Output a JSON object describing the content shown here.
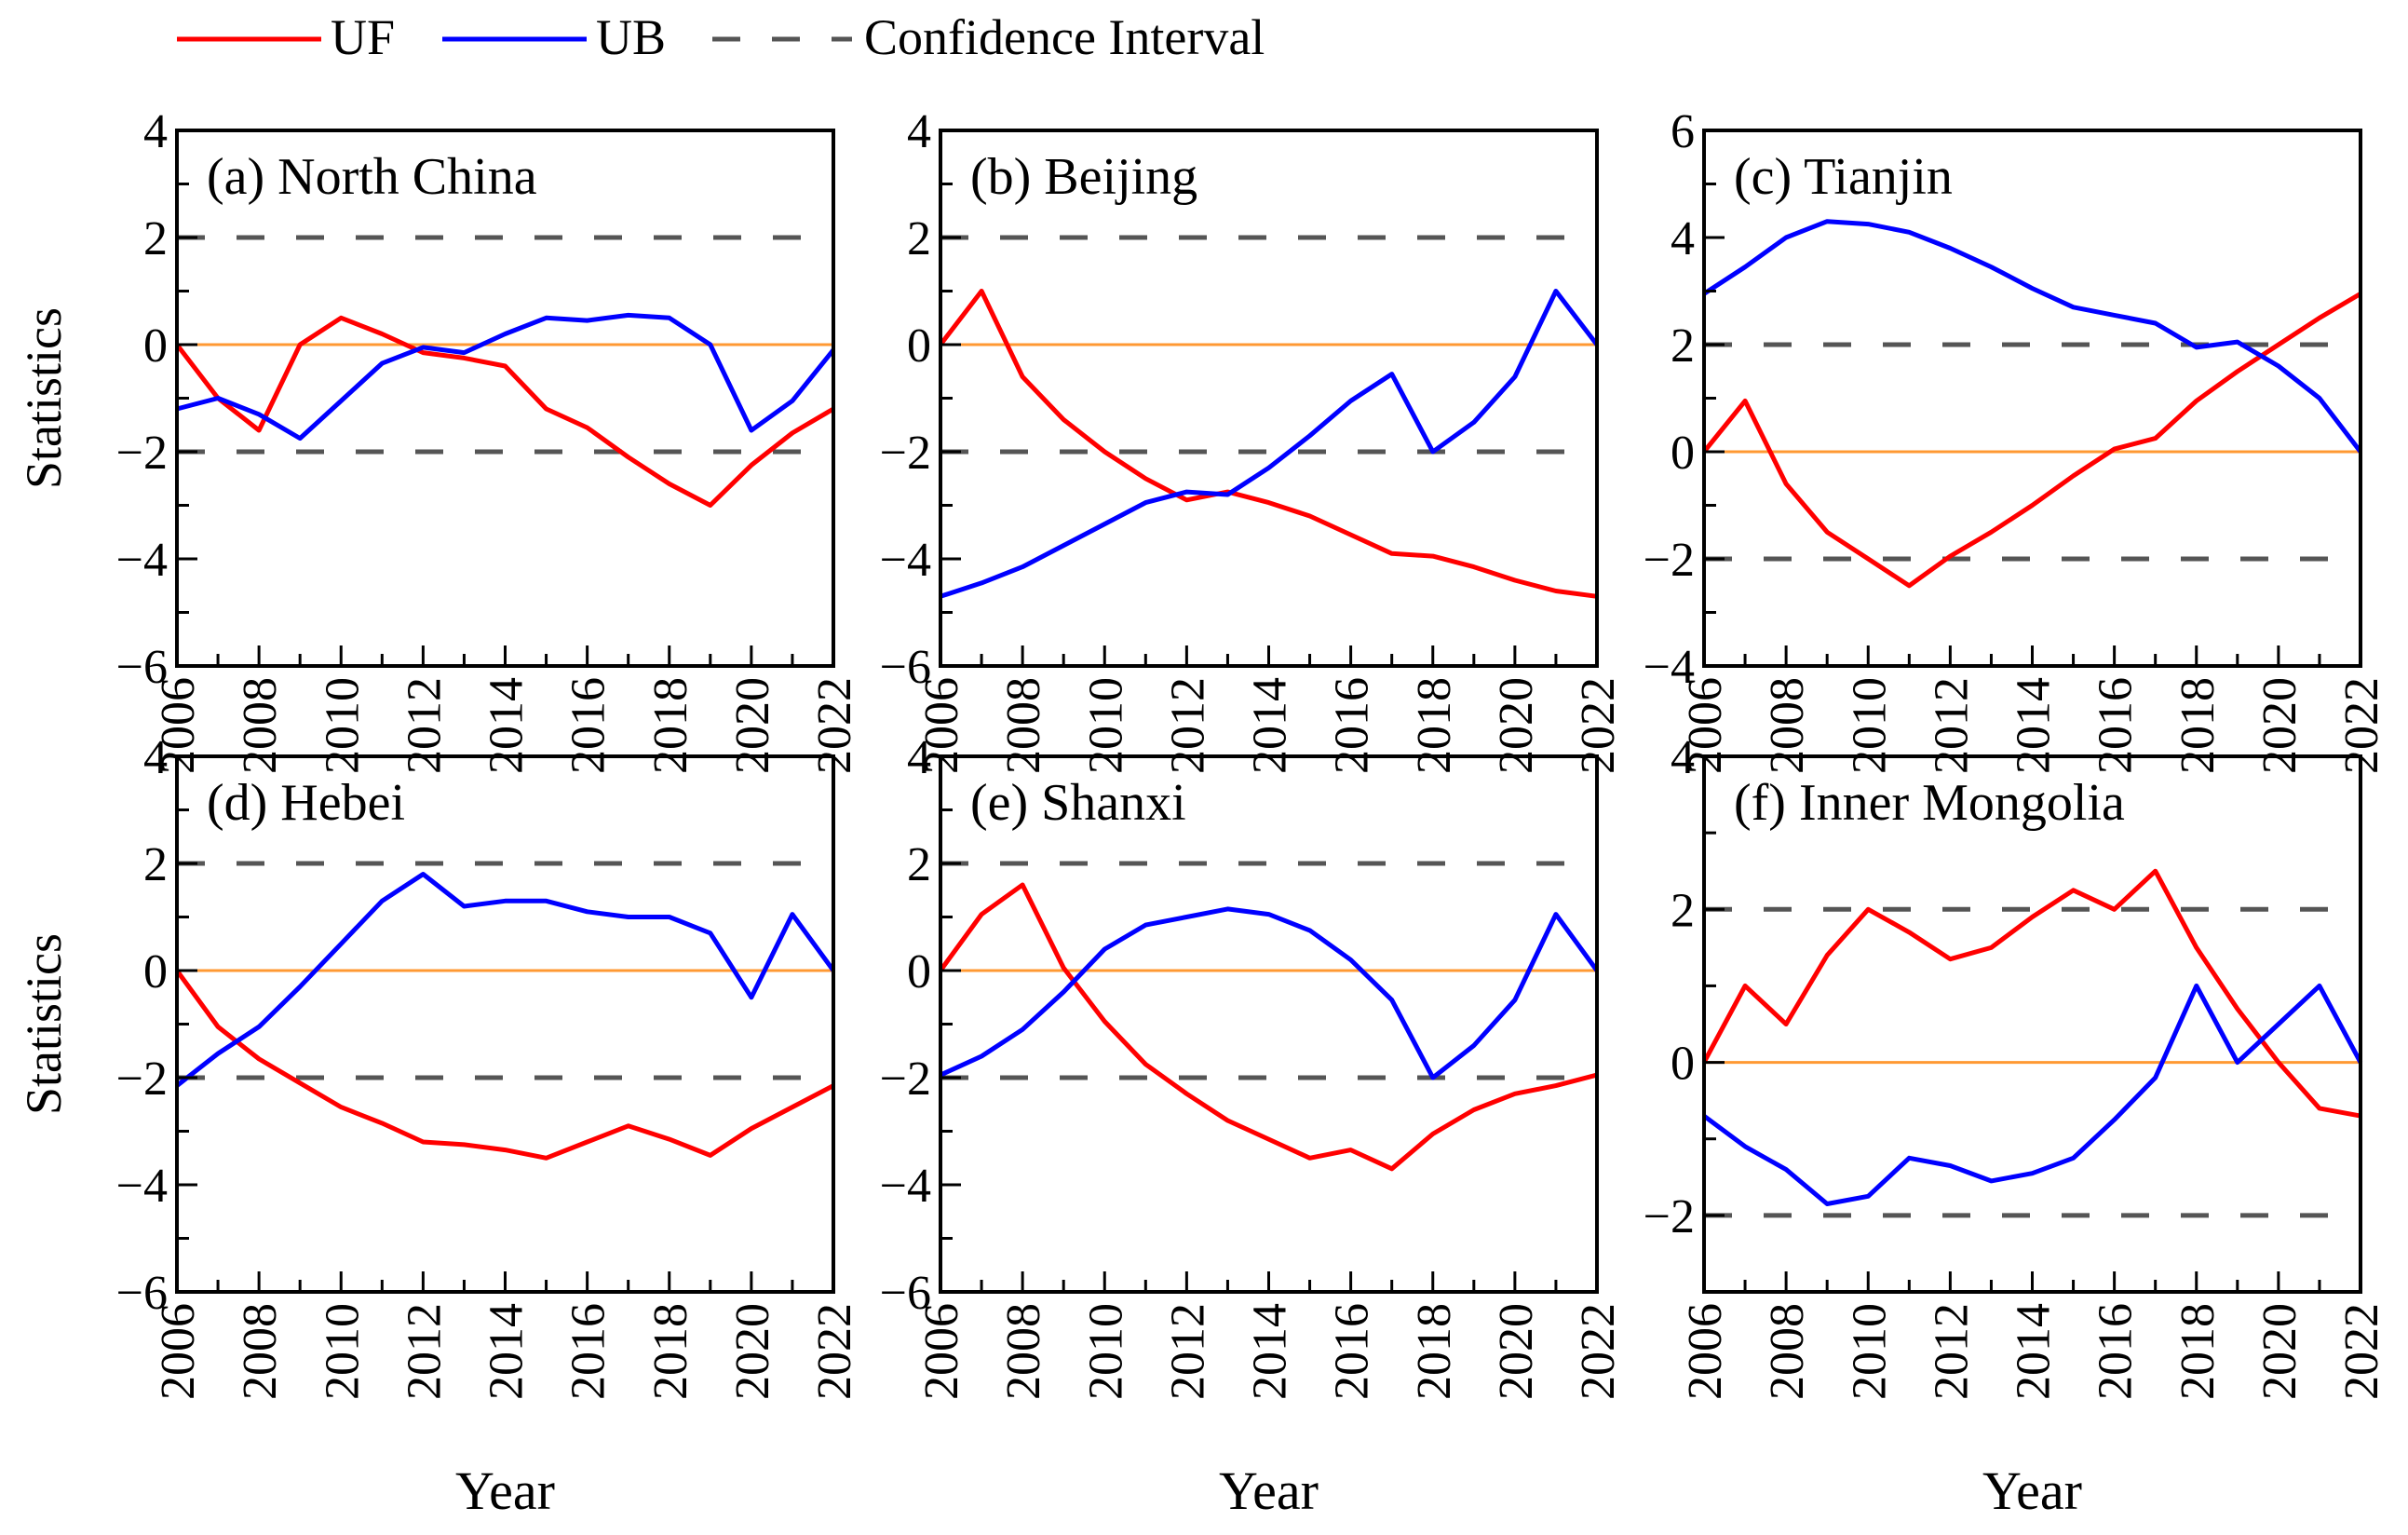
{
  "legend": {
    "placement": "top-left",
    "items": [
      {
        "label": "UF",
        "color": "#ff0000",
        "style": "solid"
      },
      {
        "label": "UB",
        "color": "#0000ff",
        "style": "solid"
      },
      {
        "label": "Confidence Interval",
        "color": "#555555",
        "style": "dashed"
      }
    ]
  },
  "colors": {
    "uf": "#ff0000",
    "ub": "#0000ff",
    "confidence": "#555555",
    "zero_line": "#ff9933"
  },
  "xlabel": "Year",
  "ylabel": "Statistics",
  "chart_data": [
    {
      "type": "line",
      "title": "(a) North China",
      "ylabel": "Statistics",
      "xlabel": "",
      "x": [
        2006,
        2007,
        2008,
        2009,
        2010,
        2011,
        2012,
        2013,
        2014,
        2015,
        2016,
        2017,
        2018,
        2019,
        2020,
        2021,
        2022
      ],
      "xticks": [
        2006,
        2008,
        2010,
        2012,
        2014,
        2016,
        2018,
        2020,
        2022
      ],
      "xlim": [
        2006,
        2022
      ],
      "ylim": [
        -6,
        4
      ],
      "yticks": [
        -6,
        -4,
        -2,
        0,
        2,
        4
      ],
      "ytick_labels": [
        "−6",
        "−4",
        "−2",
        "0",
        "2",
        "4"
      ],
      "confidence": [
        -2,
        2
      ],
      "series": [
        {
          "name": "UF",
          "values": [
            0,
            -1.0,
            -1.6,
            0.0,
            0.5,
            0.2,
            -0.15,
            -0.25,
            -0.4,
            -1.2,
            -1.55,
            -2.1,
            -2.6,
            -3.0,
            -2.25,
            -1.65,
            -1.2
          ]
        },
        {
          "name": "UB",
          "values": [
            -1.2,
            -1.0,
            -1.3,
            -1.75,
            -1.05,
            -0.35,
            -0.05,
            -0.15,
            0.2,
            0.5,
            0.45,
            0.55,
            0.5,
            0.0,
            -1.6,
            -1.05,
            -0.1
          ]
        }
      ]
    },
    {
      "type": "line",
      "title": "(b) Beijing",
      "ylabel": "",
      "xlabel": "",
      "x": [
        2006,
        2007,
        2008,
        2009,
        2010,
        2011,
        2012,
        2013,
        2014,
        2015,
        2016,
        2017,
        2018,
        2019,
        2020,
        2021,
        2022
      ],
      "xticks": [
        2006,
        2008,
        2010,
        2012,
        2014,
        2016,
        2018,
        2020,
        2022
      ],
      "xlim": [
        2006,
        2022
      ],
      "ylim": [
        -6,
        4
      ],
      "yticks": [
        -6,
        -4,
        -2,
        0,
        2,
        4
      ],
      "ytick_labels": [
        "−6",
        "−4",
        "−2",
        "0",
        "2",
        "4"
      ],
      "confidence": [
        -2,
        2
      ],
      "series": [
        {
          "name": "UF",
          "values": [
            0,
            1.0,
            -0.6,
            -1.4,
            -2.0,
            -2.5,
            -2.9,
            -2.75,
            -2.95,
            -3.2,
            -3.55,
            -3.9,
            -3.95,
            -4.15,
            -4.4,
            -4.6,
            -4.7
          ]
        },
        {
          "name": "UB",
          "values": [
            -4.7,
            -4.45,
            -4.15,
            -3.75,
            -3.35,
            -2.95,
            -2.75,
            -2.8,
            -2.3,
            -1.7,
            -1.05,
            -0.55,
            -2.0,
            -1.45,
            -0.6,
            1.0,
            0.0
          ]
        }
      ]
    },
    {
      "type": "line",
      "title": "(c) Tianjin",
      "ylabel": "",
      "xlabel": "",
      "x": [
        2006,
        2007,
        2008,
        2009,
        2010,
        2011,
        2012,
        2013,
        2014,
        2015,
        2016,
        2017,
        2018,
        2019,
        2020,
        2021,
        2022
      ],
      "xticks": [
        2006,
        2008,
        2010,
        2012,
        2014,
        2016,
        2018,
        2020,
        2022
      ],
      "xlim": [
        2006,
        2022
      ],
      "ylim": [
        -4,
        6
      ],
      "yticks": [
        -4,
        -2,
        0,
        2,
        4,
        6
      ],
      "ytick_labels": [
        "−4",
        "−2",
        "0",
        "2",
        "4",
        "6"
      ],
      "confidence": [
        -2,
        2
      ],
      "series": [
        {
          "name": "UF",
          "values": [
            0,
            0.95,
            -0.6,
            -1.5,
            -2.0,
            -2.5,
            -1.95,
            -1.5,
            -1.0,
            -0.45,
            0.05,
            0.25,
            0.95,
            1.5,
            2.0,
            2.5,
            2.95
          ]
        },
        {
          "name": "UB",
          "values": [
            2.95,
            3.45,
            4.0,
            4.3,
            4.25,
            4.1,
            3.8,
            3.45,
            3.05,
            2.7,
            2.55,
            2.4,
            1.95,
            2.05,
            1.6,
            1.0,
            0.0
          ]
        }
      ]
    },
    {
      "type": "line",
      "title": "(d) Hebei",
      "ylabel": "Statistics",
      "xlabel": "Year",
      "x": [
        2006,
        2007,
        2008,
        2009,
        2010,
        2011,
        2012,
        2013,
        2014,
        2015,
        2016,
        2017,
        2018,
        2019,
        2020,
        2021,
        2022
      ],
      "xticks": [
        2006,
        2008,
        2010,
        2012,
        2014,
        2016,
        2018,
        2020,
        2022
      ],
      "xlim": [
        2006,
        2022
      ],
      "ylim": [
        -6,
        4
      ],
      "yticks": [
        -6,
        -4,
        -2,
        0,
        2,
        4
      ],
      "ytick_labels": [
        "−6",
        "−4",
        "−2",
        "0",
        "2",
        "4"
      ],
      "confidence": [
        -2,
        2
      ],
      "series": [
        {
          "name": "UF",
          "values": [
            0,
            -1.05,
            -1.65,
            -2.1,
            -2.55,
            -2.85,
            -3.2,
            -3.25,
            -3.35,
            -3.5,
            -3.2,
            -2.9,
            -3.15,
            -3.45,
            -2.95,
            -2.55,
            -2.15
          ]
        },
        {
          "name": "UB",
          "values": [
            -2.15,
            -1.55,
            -1.05,
            -0.3,
            0.5,
            1.3,
            1.8,
            1.2,
            1.3,
            1.3,
            1.1,
            1.0,
            1.0,
            0.7,
            -0.5,
            1.05,
            0.0
          ]
        }
      ]
    },
    {
      "type": "line",
      "title": "(e) Shanxi",
      "ylabel": "",
      "xlabel": "Year",
      "x": [
        2006,
        2007,
        2008,
        2009,
        2010,
        2011,
        2012,
        2013,
        2014,
        2015,
        2016,
        2017,
        2018,
        2019,
        2020,
        2021,
        2022
      ],
      "xticks": [
        2006,
        2008,
        2010,
        2012,
        2014,
        2016,
        2018,
        2020,
        2022
      ],
      "xlim": [
        2006,
        2022
      ],
      "ylim": [
        -6,
        4
      ],
      "yticks": [
        -6,
        -4,
        -2,
        0,
        2,
        4
      ],
      "ytick_labels": [
        "−6",
        "−4",
        "−2",
        "0",
        "2",
        "4"
      ],
      "confidence": [
        -2,
        2
      ],
      "series": [
        {
          "name": "UF",
          "values": [
            0,
            1.05,
            1.6,
            0.05,
            -0.95,
            -1.75,
            -2.3,
            -2.8,
            -3.15,
            -3.5,
            -3.35,
            -3.7,
            -3.05,
            -2.6,
            -2.3,
            -2.15,
            -1.95
          ]
        },
        {
          "name": "UB",
          "values": [
            -1.95,
            -1.6,
            -1.1,
            -0.4,
            0.4,
            0.85,
            1.0,
            1.15,
            1.05,
            0.75,
            0.2,
            -0.55,
            -2.0,
            -1.4,
            -0.55,
            1.05,
            0.0
          ]
        }
      ]
    },
    {
      "type": "line",
      "title": "(f) Inner Mongolia",
      "ylabel": "",
      "xlabel": "Year",
      "x": [
        2006,
        2007,
        2008,
        2009,
        2010,
        2011,
        2012,
        2013,
        2014,
        2015,
        2016,
        2017,
        2018,
        2019,
        2020,
        2021,
        2022
      ],
      "xticks": [
        2006,
        2008,
        2010,
        2012,
        2014,
        2016,
        2018,
        2020,
        2022
      ],
      "xlim": [
        2006,
        2022
      ],
      "ylim": [
        -3,
        4
      ],
      "yticks": [
        -2,
        0,
        2,
        4
      ],
      "ytick_labels": [
        "−2",
        "0",
        "2",
        "4"
      ],
      "confidence": [
        -2,
        2
      ],
      "series": [
        {
          "name": "UF",
          "values": [
            0,
            1.0,
            0.5,
            1.4,
            2.0,
            1.7,
            1.35,
            1.5,
            1.9,
            2.25,
            2.0,
            2.5,
            1.5,
            0.7,
            0.0,
            -0.6,
            -0.7
          ]
        },
        {
          "name": "UB",
          "values": [
            -0.7,
            -1.1,
            -1.4,
            -1.85,
            -1.75,
            -1.25,
            -1.35,
            -1.55,
            -1.45,
            -1.25,
            -0.75,
            -0.2,
            1.0,
            0.0,
            0.5,
            1.0,
            0.0
          ]
        }
      ]
    }
  ]
}
